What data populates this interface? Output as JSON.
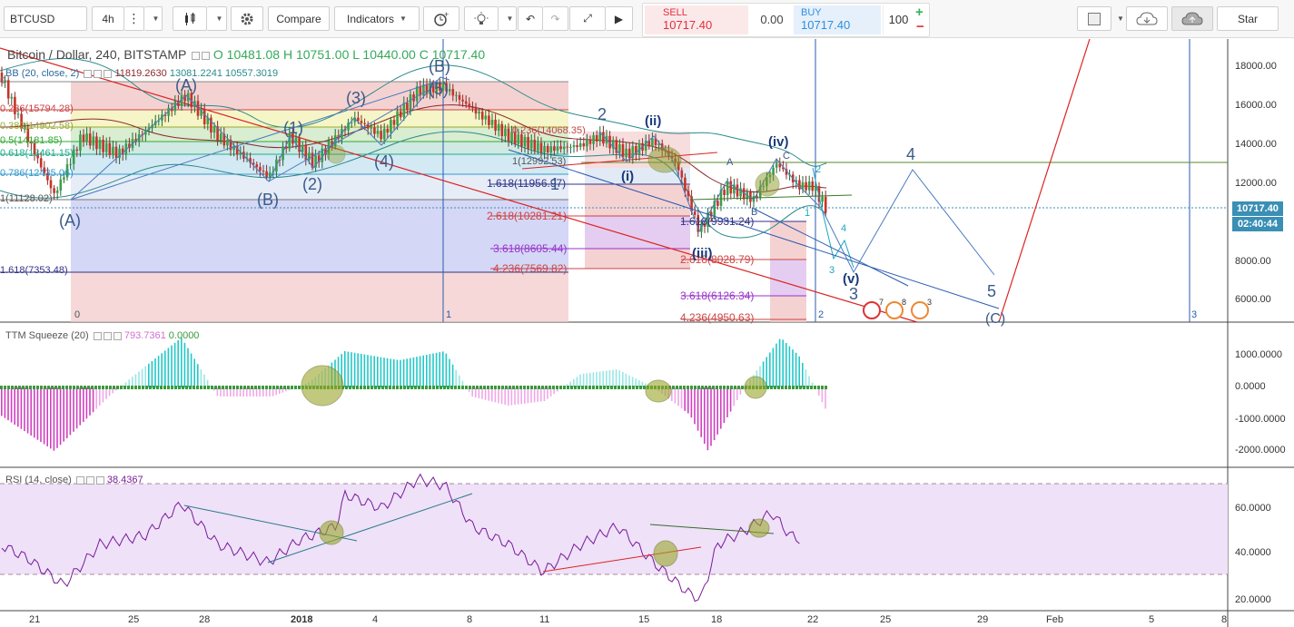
{
  "toolbar": {
    "symbol": "BTCUSD",
    "timeframe": "4h",
    "compare_label": "Compare",
    "indicators_label": "Indicators",
    "star_label": "Star"
  },
  "trade": {
    "sell_label": "SELL",
    "sell_price": "10717.40",
    "spread": "0.00",
    "buy_label": "BUY",
    "buy_price": "10717.40",
    "quantity": "100",
    "plus": "+",
    "minus": "−"
  },
  "legend": {
    "main_title": "Bitcoin / Dollar, 240, BITSTAMP",
    "ohlc": {
      "o": "O 10481.08",
      "h": "H 10751.00",
      "l": "L 10440.00",
      "c": "C 10717.40"
    },
    "bb_label": "BB (20, close, 2)",
    "bb_values": [
      "11819.2630",
      "13081.2241",
      "10557.3019"
    ],
    "ttm_label": "TTM Squeeze (20)",
    "ttm_values": [
      "793.7361",
      "0.0000"
    ],
    "rsi_label": "RSI (14, close)",
    "rsi_value": "38.4367"
  },
  "price_axis": [
    "18000.00",
    "16000.00",
    "14000.00",
    "12000.00",
    "10000.00",
    "8000.00",
    "6000.00"
  ],
  "current_price": "10717.40",
  "countdown": "02:40:44",
  "ttm_axis": [
    "1000.0000",
    "0.0000",
    "-1000.0000",
    "-2000.0000"
  ],
  "rsi_axis": [
    "60.0000",
    "40.0000",
    "20.0000"
  ],
  "time_axis": [
    "21",
    "25",
    "28",
    "2018",
    "4",
    "8",
    "11",
    "15",
    "18",
    "22",
    "25",
    "29",
    "Feb",
    "5",
    "8"
  ],
  "fib_left": [
    "0",
    "0.236(15794.28)",
    "0.382(14902.58)",
    "0.5(14181.85)",
    "0.618(13461.15)",
    "0.786(12435.06)",
    "1(11128.02)",
    "1.618(7353.48)"
  ],
  "fib_mid": [
    "1.618(11956.97)",
    "2.618(10281.21)",
    "3.618(8605.44)",
    "4.236(7569.82)"
  ],
  "fib_mid_upper": [
    "0.236(14068.35)",
    "1(12992.53)"
  ],
  "fib_right": [
    "1.618(9931.24)",
    "2.618(8028.79)",
    "3.618(6126.34)",
    "4.236(4950.63)"
  ],
  "waves": {
    "A_big": "(A)",
    "B_big": "(B)",
    "A_top": "(A)",
    "w1": "(1)",
    "w2": "(2)",
    "w3": "(3)",
    "w4": "(4)",
    "w5": "(5)",
    "C_big": "(C)",
    "two": "2",
    "ii": "(ii)",
    "i": "(i)",
    "one": "1",
    "iii": "(iii)",
    "iv": "(iv)",
    "v": "(v)",
    "A": "A",
    "B": "B",
    "C": "C",
    "four": "4",
    "five": "5",
    "three": "3",
    "c_small": "2",
    "c4": "4",
    "c3": "3",
    "c1": "1"
  },
  "vert_markers": [
    "0",
    "1",
    "2",
    "3"
  ],
  "events": [
    "7",
    "8",
    "3"
  ]
}
